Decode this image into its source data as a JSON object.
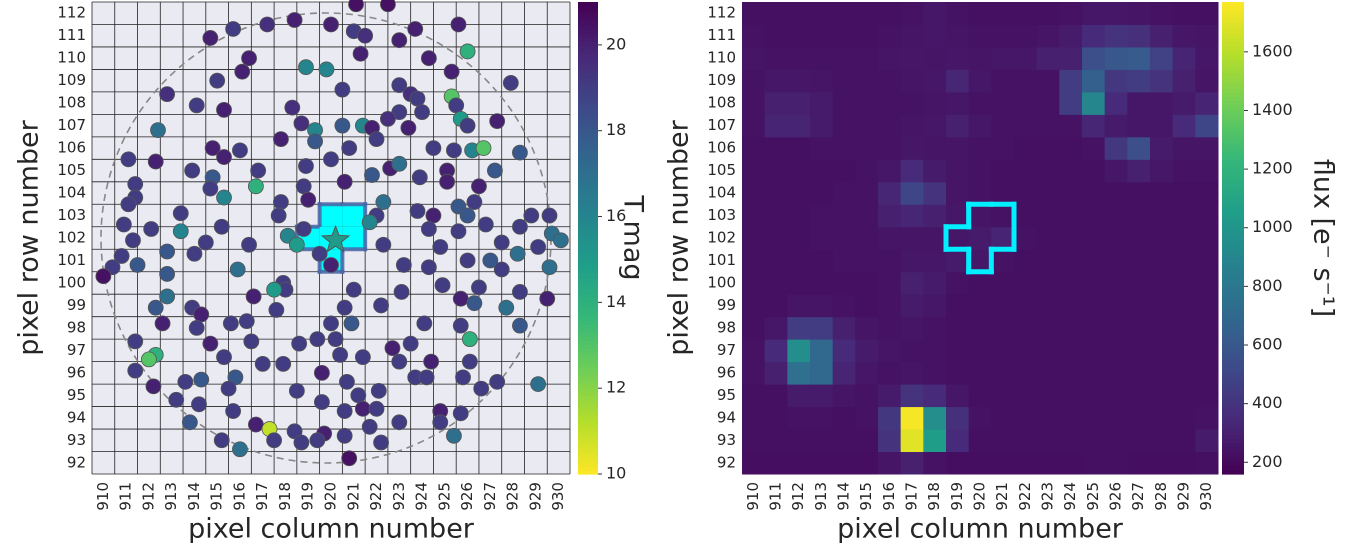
{
  "chart_data": [
    {
      "type": "scatter",
      "xlabel": "pixel column number",
      "ylabel": "pixel row number",
      "xlim": [
        909.5,
        930.5
      ],
      "ylim": [
        91.5,
        112.5
      ],
      "xticks": [
        910,
        911,
        912,
        913,
        914,
        915,
        916,
        917,
        918,
        919,
        920,
        921,
        922,
        923,
        924,
        925,
        926,
        927,
        928,
        929,
        930
      ],
      "yticks": [
        92,
        93,
        94,
        95,
        96,
        97,
        98,
        99,
        100,
        101,
        102,
        103,
        104,
        105,
        106,
        107,
        108,
        109,
        110,
        111,
        112
      ],
      "grid": true,
      "colormap": "viridis_r",
      "clim": [
        10,
        21
      ],
      "cticks": [
        10,
        12,
        14,
        16,
        18,
        20
      ],
      "colorbar_label": "T mag",
      "aperture": [
        [
          920,
          103
        ],
        [
          921,
          103
        ],
        [
          919,
          102
        ],
        [
          920,
          102
        ],
        [
          921,
          102
        ],
        [
          920,
          101
        ]
      ],
      "target": {
        "x": 920.2,
        "y": 101.9,
        "value": 15
      },
      "x": [
        921.1,
        922.5,
        915.7,
        917.2,
        918.4,
        920.0,
        921.0,
        921.5,
        923.0,
        923.7,
        925.6,
        926.0,
        914.7,
        916.4,
        918.9,
        919.8,
        921.3,
        924.3,
        925.3,
        916.1,
        915.0,
        923.0,
        923.5,
        927.9,
        912.8,
        914.1,
        918.3,
        920.5,
        923.8,
        924.0,
        925.3,
        925.5,
        923.0,
        915.3,
        918.7,
        919.3,
        919.3,
        920.5,
        921.4,
        921.8,
        922.5,
        923.4,
        925.7,
        926.0,
        927.3,
        912.4,
        914.8,
        916.0,
        917.8,
        920.8,
        922.0,
        924.5,
        925.4,
        926.2,
        926.7,
        928.3,
        911.1,
        912.3,
        915.3,
        916.8,
        918.9,
        920.0,
        922.6,
        923.0,
        925.1,
        927.2,
        913.9,
        911.4,
        914.8,
        914.7,
        916.7,
        918.8,
        920.6,
        921.8,
        923.9,
        925.1,
        926.5,
        911.4,
        911.1,
        915.3,
        917.8,
        919.0,
        922.3,
        923.8,
        925.6,
        926.3,
        913.4,
        917.7,
        922.0,
        924.5,
        926.0,
        928.8,
        929.6,
        910.9,
        912.1,
        913.4,
        915.2,
        918.1,
        918.8,
        921.7,
        924.3,
        925.6,
        926.8,
        928.3,
        929.7,
        911.3,
        914.5,
        916.4,
        918.5,
        922.3,
        927.5,
        929.1,
        930.1,
        910.8,
        912.8,
        914.0,
        919.5,
        924.8,
        926.0,
        927.0,
        928.2,
        910.4,
        911.5,
        915.9,
        920.0,
        923.2,
        924.3,
        927.5,
        929.6,
        910.0,
        912.8,
        917.9,
        918.0,
        923.1,
        925.7,
        926.5,
        912.8,
        913.9,
        916.6,
        917.5,
        921.0,
        924.9,
        928.3,
        929.5,
        912.3,
        914.3,
        917.6,
        920.6,
        922.2,
        926.3,
        927.7,
        912.6,
        914.1,
        915.6,
        916.3,
        920.0,
        920.9,
        924.1,
        925.7,
        928.3,
        911.4,
        914.7,
        916.5,
        918.6,
        919.4,
        920.2,
        922.7,
        923.5,
        926.1,
        912.3,
        915.3,
        917.0,
        917.9,
        920.4,
        921.4,
        923.0,
        924.4,
        926.1,
        911.4,
        912.0,
        914.3,
        915.8,
        919.6,
        920.7,
        923.7,
        924.2,
        925.8,
        927.3,
        929.1,
        912.2,
        913.6,
        915.5,
        918.5,
        921.2,
        922.1,
        926.6,
        913.2,
        914.2,
        915.7,
        919.6,
        920.6,
        921.4,
        922.0,
        924.8,
        925.7,
        913.8,
        916.7,
        917.3,
        918.4,
        919.7,
        920.6,
        921.7,
        923.0,
        924.8,
        925.4,
        915.2,
        917.5,
        919.4,
        922.2,
        916.0,
        920.8,
        918.7
      ],
      "y": [
        112.4,
        112.4,
        111.3,
        111.5,
        111.7,
        111.5,
        111.2,
        111.0,
        110.8,
        111.3,
        111.5,
        110.3,
        110.9,
        110.0,
        109.6,
        109.5,
        110.2,
        110.0,
        109.4,
        109.4,
        109.0,
        108.8,
        108.4,
        108.9,
        108.4,
        107.9,
        107.8,
        108.6,
        108.2,
        107.6,
        108.3,
        107.9,
        107.6,
        107.7,
        107.1,
        106.8,
        106.3,
        107.0,
        107.0,
        106.9,
        107.3,
        106.9,
        107.3,
        107.0,
        107.2,
        106.8,
        106.0,
        105.9,
        106.4,
        106.0,
        106.4,
        106.0,
        105.9,
        105.9,
        106.0,
        105.8,
        105.5,
        105.4,
        105.6,
        105.0,
        105.2,
        105.5,
        105.1,
        105.3,
        105.0,
        105.0,
        105.0,
        104.4,
        104.7,
        104.2,
        104.3,
        104.3,
        104.5,
        104.8,
        104.7,
        104.5,
        104.3,
        103.8,
        103.5,
        103.8,
        103.6,
        103.7,
        103.6,
        103.2,
        103.4,
        103.6,
        103.1,
        103.0,
        103.0,
        103.0,
        103.0,
        103.0,
        103.0,
        102.6,
        102.4,
        102.3,
        102.5,
        102.1,
        102.4,
        102.7,
        102.4,
        102.3,
        102.6,
        102.5,
        102.2,
        101.9,
        101.8,
        101.7,
        101.7,
        101.7,
        101.8,
        101.6,
        101.9,
        101.2,
        101.4,
        101.3,
        101.3,
        101.6,
        101.0,
        101.0,
        101.3,
        100.7,
        100.8,
        100.6,
        100.8,
        100.8,
        100.7,
        100.6,
        100.7,
        100.3,
        100.4,
        100.0,
        99.7,
        99.6,
        99.3,
        99.8,
        99.4,
        98.9,
        99.4,
        99.7,
        99.7,
        99.9,
        99.6,
        99.3,
        98.9,
        98.6,
        98.8,
        98.9,
        99.0,
        99.1,
        98.9,
        98.2,
        98.0,
        98.2,
        98.3,
        98.2,
        98.2,
        98.2,
        98.1,
        98.1,
        97.4,
        97.3,
        97.4,
        97.3,
        97.5,
        97.5,
        97.1,
        97.3,
        97.5,
        96.8,
        96.7,
        96.4,
        96.4,
        96.8,
        96.7,
        96.5,
        96.5,
        96.5,
        96.1,
        96.6,
        95.7,
        95.8,
        96.0,
        95.6,
        95.8,
        95.8,
        95.8,
        95.6,
        95.5,
        95.4,
        95.6,
        95.3,
        95.2,
        95.0,
        95.2,
        95.3,
        94.8,
        94.6,
        94.3,
        94.7,
        94.3,
        94.4,
        94.4,
        94.3,
        94.2,
        93.8,
        93.7,
        93.5,
        93.4,
        93.3,
        93.2,
        93.6,
        93.8,
        93.8,
        93.2,
        93.0,
        93.0,
        93.0,
        92.9,
        92.6,
        92.2,
        92.9
      ],
      "values": [
        20.5,
        20.5,
        19,
        19.5,
        20,
        20,
        19,
        19.5,
        20,
        20,
        20,
        14,
        20,
        20,
        16,
        16,
        20,
        20,
        20,
        20,
        19,
        19,
        19.5,
        19,
        19.5,
        19,
        19.5,
        19,
        19,
        19,
        13,
        19,
        19,
        20,
        19.5,
        16,
        18,
        18,
        16,
        20,
        19.5,
        20,
        15,
        19,
        20,
        17,
        20,
        19,
        20,
        19,
        19,
        19,
        19,
        16,
        13,
        18,
        19,
        20,
        20,
        19,
        19,
        19,
        20,
        17,
        20,
        18,
        19,
        19,
        18,
        19,
        14,
        19,
        20,
        18,
        19,
        20,
        20,
        19,
        19,
        16,
        19,
        20,
        17,
        19,
        18,
        19,
        19,
        19,
        19,
        20,
        18,
        19,
        19,
        19,
        19,
        16,
        19,
        16,
        19,
        16,
        19,
        19,
        19,
        19,
        17,
        19,
        19,
        19,
        15,
        19,
        19,
        19,
        17,
        19,
        18,
        19,
        19,
        19,
        19,
        18,
        17,
        19,
        18,
        17,
        20,
        19,
        19,
        19,
        17,
        20.5,
        18,
        19,
        19,
        19,
        20,
        19,
        17,
        19,
        20,
        15,
        19,
        19,
        19,
        20,
        18,
        20,
        19,
        19,
        19,
        18,
        17,
        20,
        19,
        19,
        19,
        19,
        18,
        19,
        19,
        18,
        19,
        20,
        19,
        19,
        19,
        19,
        20,
        19,
        14,
        14,
        19,
        19,
        19,
        19,
        19,
        19,
        20,
        19,
        19,
        13,
        18,
        18,
        20,
        19,
        19,
        19,
        19,
        19,
        17,
        20,
        19,
        19,
        19,
        19,
        19,
        19,
        19,
        19,
        19,
        19,
        19,
        20,
        19,
        20,
        19,
        18,
        20,
        11,
        19,
        20,
        19,
        19,
        19,
        19,
        17,
        19,
        19,
        19,
        19,
        17,
        20.5,
        19
      ]
    },
    {
      "type": "heatmap",
      "xlabel": "pixel column number",
      "ylabel": "pixel row number",
      "xlim": [
        909.5,
        930.5
      ],
      "ylim": [
        91.5,
        112.5
      ],
      "x": [
        910,
        911,
        912,
        913,
        914,
        915,
        916,
        917,
        918,
        919,
        920,
        921,
        922,
        923,
        924,
        925,
        926,
        927,
        928,
        929,
        930
      ],
      "y": [
        92,
        93,
        94,
        95,
        96,
        97,
        98,
        99,
        100,
        101,
        102,
        103,
        104,
        105,
        106,
        107,
        108,
        109,
        110,
        111,
        112
      ],
      "colormap": "viridis",
      "clim": [
        160,
        1770
      ],
      "cticks": [
        200,
        400,
        600,
        800,
        1000,
        1200,
        1400,
        1600
      ],
      "colorbar_label": "flux [e⁻ s⁻¹]",
      "aperture": [
        [
          920,
          103
        ],
        [
          921,
          103
        ],
        [
          919,
          102
        ],
        [
          920,
          102
        ],
        [
          921,
          102
        ],
        [
          920,
          101
        ]
      ],
      "values": [
        [
          220,
          220,
          220,
          220,
          220,
          220,
          250,
          300,
          240,
          220,
          220,
          220,
          220,
          220,
          220,
          230,
          230,
          220,
          220,
          220,
          230
        ],
        [
          230,
          230,
          230,
          230,
          230,
          230,
          400,
          1700,
          1050,
          350,
          230,
          230,
          230,
          230,
          230,
          230,
          230,
          230,
          230,
          230,
          280
        ],
        [
          230,
          230,
          240,
          240,
          230,
          240,
          420,
          1750,
          950,
          380,
          240,
          230,
          230,
          230,
          230,
          230,
          230,
          230,
          230,
          230,
          240
        ],
        [
          230,
          230,
          280,
          280,
          250,
          240,
          280,
          400,
          350,
          260,
          230,
          230,
          230,
          230,
          230,
          230,
          230,
          230,
          230,
          230,
          230
        ],
        [
          240,
          300,
          750,
          700,
          320,
          260,
          240,
          250,
          240,
          230,
          230,
          230,
          230,
          230,
          230,
          230,
          230,
          230,
          230,
          230,
          230
        ],
        [
          240,
          350,
          950,
          700,
          350,
          280,
          250,
          240,
          240,
          230,
          230,
          230,
          230,
          230,
          230,
          230,
          230,
          230,
          230,
          230,
          230
        ],
        [
          230,
          260,
          450,
          450,
          300,
          250,
          240,
          250,
          240,
          230,
          230,
          230,
          230,
          230,
          230,
          230,
          230,
          230,
          230,
          230,
          230
        ],
        [
          230,
          230,
          250,
          250,
          240,
          230,
          240,
          280,
          260,
          230,
          230,
          230,
          230,
          230,
          230,
          230,
          230,
          230,
          230,
          230,
          230
        ],
        [
          230,
          230,
          230,
          230,
          230,
          230,
          240,
          300,
          280,
          240,
          230,
          230,
          230,
          230,
          230,
          230,
          230,
          230,
          230,
          230,
          230
        ],
        [
          230,
          230,
          230,
          230,
          240,
          240,
          240,
          260,
          260,
          280,
          260,
          240,
          230,
          230,
          230,
          230,
          230,
          230,
          230,
          230,
          230
        ],
        [
          230,
          230,
          230,
          240,
          240,
          240,
          250,
          250,
          250,
          260,
          280,
          320,
          240,
          230,
          230,
          230,
          230,
          230,
          230,
          230,
          230
        ],
        [
          230,
          230,
          230,
          240,
          240,
          240,
          300,
          330,
          300,
          260,
          250,
          240,
          230,
          230,
          230,
          230,
          230,
          230,
          230,
          230,
          230
        ],
        [
          230,
          230,
          230,
          230,
          240,
          240,
          330,
          500,
          400,
          250,
          240,
          230,
          230,
          230,
          230,
          230,
          230,
          230,
          230,
          230,
          230
        ],
        [
          230,
          230,
          230,
          230,
          230,
          240,
          260,
          350,
          280,
          250,
          240,
          230,
          230,
          230,
          230,
          230,
          260,
          300,
          260,
          240,
          240
        ],
        [
          230,
          230,
          230,
          240,
          240,
          240,
          240,
          260,
          250,
          250,
          240,
          240,
          230,
          230,
          230,
          240,
          420,
          550,
          280,
          250,
          250
        ],
        [
          240,
          320,
          320,
          280,
          240,
          240,
          240,
          250,
          260,
          300,
          260,
          240,
          240,
          240,
          240,
          330,
          280,
          260,
          260,
          350,
          500
        ],
        [
          240,
          300,
          300,
          280,
          240,
          240,
          240,
          240,
          250,
          260,
          240,
          240,
          240,
          240,
          450,
          900,
          350,
          260,
          260,
          280,
          320
        ],
        [
          240,
          260,
          260,
          250,
          240,
          240,
          240,
          250,
          260,
          330,
          260,
          240,
          240,
          240,
          450,
          650,
          420,
          450,
          400,
          300,
          250
        ],
        [
          250,
          240,
          240,
          240,
          240,
          240,
          250,
          260,
          250,
          260,
          250,
          260,
          260,
          300,
          300,
          550,
          600,
          620,
          480,
          320,
          260
        ],
        [
          240,
          230,
          230,
          230,
          230,
          230,
          240,
          250,
          260,
          250,
          240,
          240,
          240,
          250,
          280,
          350,
          400,
          380,
          300,
          260,
          250
        ],
        [
          230,
          230,
          230,
          230,
          230,
          230,
          230,
          240,
          260,
          240,
          230,
          230,
          230,
          230,
          240,
          260,
          260,
          250,
          240,
          230,
          230
        ]
      ]
    }
  ]
}
